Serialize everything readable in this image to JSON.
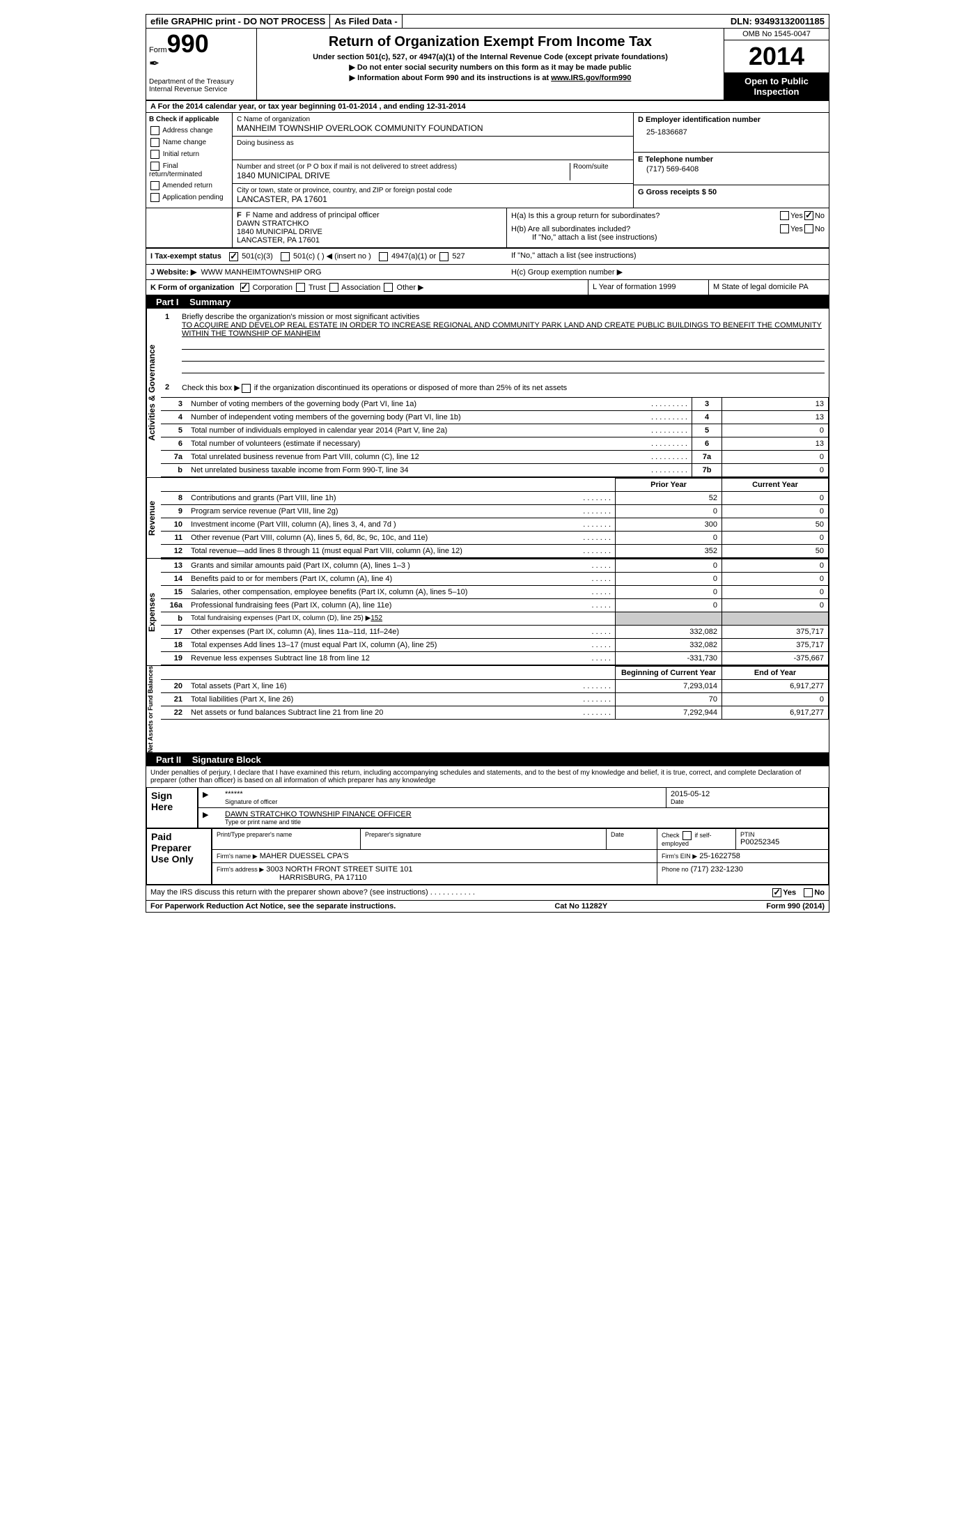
{
  "topbar": {
    "efile": "efile GRAPHIC print - DO NOT PROCESS",
    "asfiled": "As Filed Data -",
    "dln": "DLN: 93493132001185"
  },
  "header": {
    "form_label": "Form",
    "form_num": "990",
    "dept1": "Department of the Treasury",
    "dept2": "Internal Revenue Service",
    "title": "Return of Organization Exempt From Income Tax",
    "subtitle1": "Under section 501(c), 527, or 4947(a)(1) of the Internal Revenue Code (except private foundations)",
    "subtitle2": "▶ Do not enter social security numbers on this form as it may be made public",
    "subtitle3": "▶ Information about Form 990 and its instructions is at www.IRS.gov/form990",
    "omb": "OMB No 1545-0047",
    "year": "2014",
    "inspection": "Open to Public Inspection"
  },
  "sectionA": "A  For the 2014 calendar year, or tax year beginning 01-01-2014    , and ending 12-31-2014",
  "sectionB": {
    "header": "B  Check if applicable",
    "items": [
      "Address change",
      "Name change",
      "Initial return",
      "Final return/terminated",
      "Amended return",
      "Application pending"
    ]
  },
  "sectionC": {
    "name_label": "C Name of organization",
    "name": "MANHEIM TOWNSHIP OVERLOOK COMMUNITY FOUNDATION",
    "dba_label": "Doing business as",
    "dba": "",
    "addr_label": "Number and street (or P O  box if mail is not delivered to street address)",
    "room_label": "Room/suite",
    "addr": "1840 MUNICIPAL DRIVE",
    "city_label": "City or town, state or province, country, and ZIP or foreign postal code",
    "city": "LANCASTER, PA  17601"
  },
  "sectionD": {
    "label": "D Employer identification number",
    "value": "25-1836687"
  },
  "sectionE": {
    "label": "E Telephone number",
    "value": "(717) 569-6408"
  },
  "sectionG": {
    "label": "G Gross receipts $ 50"
  },
  "sectionF": {
    "label": "F  Name and address of principal officer",
    "name": "DAWN STRATCHKO",
    "addr1": "1840 MUNICIPAL DRIVE",
    "addr2": "LANCASTER, PA  17601"
  },
  "sectionH": {
    "ha": "H(a)  Is this a group return for subordinates?",
    "hb": "H(b)  Are all subordinates included?",
    "hb_note": "If \"No,\" attach a list  (see instructions)",
    "hc": "H(c)   Group exemption number ▶",
    "yes": "Yes",
    "no": "No"
  },
  "sectionI": {
    "label": "I   Tax-exempt status",
    "opt1": "501(c)(3)",
    "opt2": "501(c) (   ) ◀ (insert no )",
    "opt3": "4947(a)(1) or",
    "opt4": "527"
  },
  "sectionJ": {
    "label": "J   Website: ▶",
    "value": "WWW MANHEIMTOWNSHIP ORG"
  },
  "sectionK": {
    "label": "K Form of organization",
    "opts": [
      "Corporation",
      "Trust",
      "Association",
      "Other ▶"
    ]
  },
  "sectionL": {
    "label": "L Year of formation  1999"
  },
  "sectionM": {
    "label": "M State of legal domicile  PA"
  },
  "part1": {
    "title": "Part I",
    "subtitle": "Summary",
    "line1_label": "Briefly describe the organization's mission or most significant activities",
    "line1_text": "TO ACQUIRE AND DEVELOP REAL ESTATE IN ORDER TO INCREASE REGIONAL AND COMMUNITY PARK LAND AND CREATE PUBLIC BUILDINGS TO BENEFIT THE COMMUNITY WITHIN THE TOWNSHIP OF MANHEIM",
    "line2": "Check this box ▶    if the organization discontinued its operations or disposed of more than 25% of its net assets",
    "lines_gov": [
      {
        "n": "3",
        "t": "Number of voting members of the governing body (Part VI, line 1a)",
        "c": "3",
        "v": "13"
      },
      {
        "n": "4",
        "t": "Number of independent voting members of the governing body (Part VI, line 1b)",
        "c": "4",
        "v": "13"
      },
      {
        "n": "5",
        "t": "Total number of individuals employed in calendar year 2014 (Part V, line 2a)",
        "c": "5",
        "v": "0"
      },
      {
        "n": "6",
        "t": "Total number of volunteers (estimate if necessary)",
        "c": "6",
        "v": "13"
      },
      {
        "n": "7a",
        "t": "Total unrelated business revenue from Part VIII, column (C), line 12",
        "c": "7a",
        "v": "0"
      },
      {
        "n": "b",
        "t": "Net unrelated business taxable income from Form 990-T, line 34",
        "c": "7b",
        "v": "0"
      }
    ],
    "prior_year": "Prior Year",
    "current_year": "Current Year",
    "lines_rev": [
      {
        "n": "8",
        "t": "Contributions and grants (Part VIII, line 1h)",
        "p": "52",
        "c": "0"
      },
      {
        "n": "9",
        "t": "Program service revenue (Part VIII, line 2g)",
        "p": "0",
        "c": "0"
      },
      {
        "n": "10",
        "t": "Investment income (Part VIII, column (A), lines 3, 4, and 7d )",
        "p": "300",
        "c": "50"
      },
      {
        "n": "11",
        "t": "Other revenue (Part VIII, column (A), lines 5, 6d, 8c, 9c, 10c, and 11e)",
        "p": "0",
        "c": "0"
      },
      {
        "n": "12",
        "t": "Total revenue—add lines 8 through 11 (must equal Part VIII, column (A), line 12)",
        "p": "352",
        "c": "50"
      }
    ],
    "lines_exp": [
      {
        "n": "13",
        "t": "Grants and similar amounts paid (Part IX, column (A), lines 1–3 )",
        "p": "0",
        "c": "0"
      },
      {
        "n": "14",
        "t": "Benefits paid to or for members (Part IX, column (A), line 4)",
        "p": "0",
        "c": "0"
      },
      {
        "n": "15",
        "t": "Salaries, other compensation, employee benefits (Part IX, column (A), lines 5–10)",
        "p": "0",
        "c": "0"
      },
      {
        "n": "16a",
        "t": "Professional fundraising fees (Part IX, column (A), line 11e)",
        "p": "0",
        "c": "0"
      },
      {
        "n": "b",
        "t": "Total fundraising expenses (Part IX, column (D), line 25) ▶",
        "p": "",
        "c": ""
      },
      {
        "n": "17",
        "t": "Other expenses (Part IX, column (A), lines 11a–11d, 11f–24e)",
        "p": "332,082",
        "c": "375,717"
      },
      {
        "n": "18",
        "t": "Total expenses  Add lines 13–17 (must equal Part IX, column (A), line 25)",
        "p": "332,082",
        "c": "375,717"
      },
      {
        "n": "19",
        "t": "Revenue less expenses  Subtract line 18 from line 12",
        "p": "-331,730",
        "c": "-375,667"
      }
    ],
    "line16b_val": "152",
    "beg_year": "Beginning of Current Year",
    "end_year": "End of Year",
    "lines_net": [
      {
        "n": "20",
        "t": "Total assets (Part X, line 16)",
        "p": "7,293,014",
        "c": "6,917,277"
      },
      {
        "n": "21",
        "t": "Total liabilities (Part X, line 26)",
        "p": "70",
        "c": "0"
      },
      {
        "n": "22",
        "t": "Net assets or fund balances  Subtract line 21 from line 20",
        "p": "7,292,944",
        "c": "6,917,277"
      }
    ]
  },
  "part2": {
    "title": "Part II",
    "subtitle": "Signature Block",
    "perjury": "Under penalties of perjury, I declare that I have examined this return, including accompanying schedules and statements, and to the best of my knowledge and belief, it is true, correct, and complete  Declaration of preparer (other than officer) is based on all information of which preparer has any knowledge",
    "sign_here": "Sign Here",
    "sig_stars": "******",
    "sig_officer": "Signature of officer",
    "sig_date": "2015-05-12",
    "date_label": "Date",
    "sig_name": "DAWN STRATCHKO TOWNSHIP FINANCE OFFICER",
    "sig_name_label": "Type or print name and title",
    "paid_prep": "Paid Preparer Use Only",
    "prep_name_label": "Print/Type preparer's name",
    "prep_sig_label": "Preparer's signature",
    "prep_date_label": "Date",
    "prep_check": "Check     if self-employed",
    "ptin_label": "PTIN",
    "ptin": "P00252345",
    "firm_name_label": "Firm's name     ▶",
    "firm_name": "MAHER DUESSEL CPA'S",
    "firm_ein_label": "Firm's EIN ▶",
    "firm_ein": "25-1622758",
    "firm_addr_label": "Firm's address ▶",
    "firm_addr": "3003 NORTH FRONT STREET SUITE 101",
    "firm_city": "HARRISBURG, PA  17110",
    "phone_label": "Phone no",
    "phone": "(717) 232-1230",
    "discuss": "May the IRS discuss this return with the preparer shown above? (see instructions)",
    "yes": "Yes",
    "no": "No"
  },
  "footer": {
    "paperwork": "For Paperwork Reduction Act Notice, see the separate instructions.",
    "cat": "Cat No 11282Y",
    "form": "Form 990 (2014)"
  },
  "vlabels": {
    "gov": "Activities & Governance",
    "rev": "Revenue",
    "exp": "Expenses",
    "net": "Net Assets or Fund Balances"
  }
}
